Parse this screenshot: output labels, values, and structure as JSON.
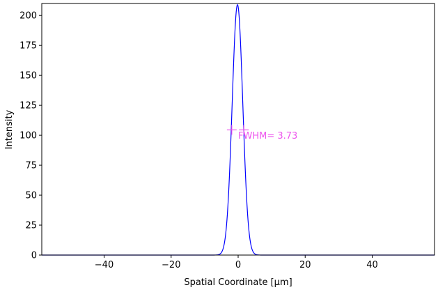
{
  "chart_data": {
    "type": "line",
    "title": "",
    "xlabel": "Spatial Coordinate [μm]",
    "ylabel": "Intensity",
    "xlim": [
      -58.6,
      58.6
    ],
    "ylim": [
      0,
      210
    ],
    "xticks": [
      -40,
      -20,
      0,
      20,
      40
    ],
    "xtick_labels": [
      "−40",
      "−20",
      "0",
      "20",
      "40"
    ],
    "yticks": [
      0,
      25,
      50,
      75,
      100,
      125,
      150,
      175,
      200
    ],
    "yticks_labels": [
      "0",
      "25",
      "50",
      "75",
      "100",
      "125",
      "150",
      "175",
      "200"
    ],
    "grid": false,
    "series": [
      {
        "color": "#0000ff",
        "profile": "gaussian",
        "center": -0.2,
        "peak": 209,
        "fwhm": 3.73
      }
    ],
    "fwhm_marker": {
      "x": [
        -1.9,
        1.7
      ],
      "y": 104.5,
      "color": "#ee55ee"
    },
    "annotation": {
      "text": "FWHM= 3.73",
      "x": 0.0,
      "y": 100,
      "color": "#ee55ee"
    }
  }
}
